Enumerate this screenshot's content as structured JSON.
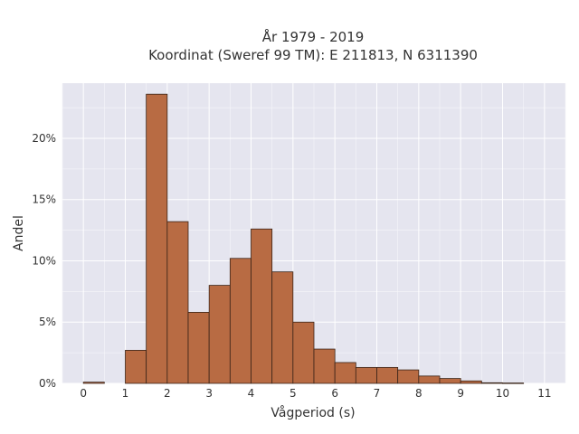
{
  "chart_data": {
    "type": "bar",
    "title_line1": "År 1979 - 2019",
    "title_line2": "Koordinat (Sweref 99 TM): E 211813, N 6311390",
    "xlabel": "Vågperiod (s)",
    "ylabel": "Andel",
    "x_ticks": [
      "0",
      "1",
      "2",
      "3",
      "4",
      "5",
      "6",
      "7",
      "8",
      "9",
      "10",
      "11"
    ],
    "y_ticks": [
      "0%",
      "5%",
      "10%",
      "15%",
      "20%"
    ],
    "xlim": [
      -0.5,
      11.5
    ],
    "ylim": [
      0,
      24.5
    ],
    "bin_width": 0.5,
    "bins": [
      {
        "x0": 0.0,
        "value": 0.1
      },
      {
        "x0": 1.0,
        "value": 2.7
      },
      {
        "x0": 1.5,
        "value": 23.6
      },
      {
        "x0": 2.0,
        "value": 13.2
      },
      {
        "x0": 2.5,
        "value": 5.8
      },
      {
        "x0": 3.0,
        "value": 8.0
      },
      {
        "x0": 3.5,
        "value": 10.2
      },
      {
        "x0": 4.0,
        "value": 12.6
      },
      {
        "x0": 4.5,
        "value": 9.1
      },
      {
        "x0": 5.0,
        "value": 5.0
      },
      {
        "x0": 5.5,
        "value": 2.8
      },
      {
        "x0": 6.0,
        "value": 1.7
      },
      {
        "x0": 6.5,
        "value": 1.3
      },
      {
        "x0": 7.0,
        "value": 1.3
      },
      {
        "x0": 7.5,
        "value": 1.1
      },
      {
        "x0": 8.0,
        "value": 0.6
      },
      {
        "x0": 8.5,
        "value": 0.4
      },
      {
        "x0": 9.0,
        "value": 0.2
      },
      {
        "x0": 9.5,
        "value": 0.05
      },
      {
        "x0": 10.0,
        "value": 0.03
      }
    ],
    "bar_color": "#b86b43",
    "bar_edge_color": "#3a2418",
    "plot_bg_color": "#e5e5ef",
    "grid": true,
    "legend": "none"
  }
}
